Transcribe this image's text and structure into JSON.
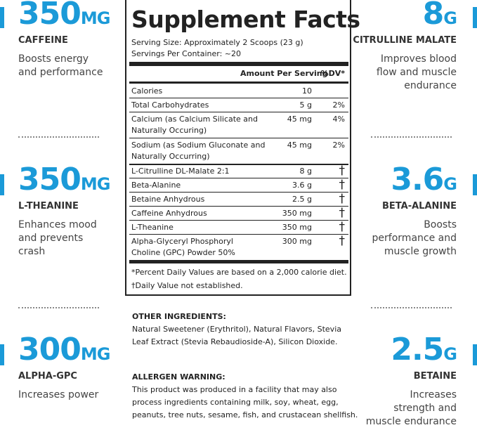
{
  "left_callouts": [
    {
      "value": "350",
      "unit": "MG",
      "name": "CAFFEINE",
      "description": [
        "Boosts energy",
        "and performance"
      ]
    },
    {
      "value": "350",
      "unit": "MG",
      "name": "L-THEANINE",
      "description": [
        "Enhances mood",
        "and prevents",
        "crash"
      ]
    },
    {
      "value": "300",
      "unit": "MG",
      "name": "ALPHA-GPC",
      "description": [
        "Increases power"
      ]
    }
  ],
  "right_callouts": [
    {
      "value": "8",
      "unit": "G",
      "name": "CITRULLINE MALATE",
      "description": [
        "Improves blood",
        "flow and muscle",
        "endurance"
      ]
    },
    {
      "value": "3.6",
      "unit": "G",
      "name": "BETA-ALANINE",
      "description": [
        "Boosts",
        "performance and",
        "muscle growth"
      ]
    },
    {
      "value": "2.5",
      "unit": "G",
      "name": "BETAINE",
      "description": [
        "Increases",
        "strength and",
        "muscle endurance"
      ]
    }
  ],
  "facts": {
    "title": "Supplement Facts",
    "serving_size": "Serving Size: Approximately 2 Scoops (23 g)",
    "servings_per_container": "Servings Per Container: ~20",
    "header": {
      "amount": "Amount Per Serving",
      "dv": "%DV*"
    },
    "rows": [
      {
        "name": [
          "Calories"
        ],
        "amount": "10",
        "dv": ""
      },
      {
        "name": [
          "Total Carbohydrates"
        ],
        "amount": "5 g",
        "dv": "2%"
      },
      {
        "name": [
          "Calcium (as Calcium Silicate and",
          "Naturally Occuring)"
        ],
        "amount": "45 mg",
        "dv": "4%"
      },
      {
        "name": [
          "Sodium (as Sodium Gluconate and",
          "Naturally Occurring)"
        ],
        "amount": "45 mg",
        "dv": "2%"
      },
      {
        "name": [
          "L-Citrulline DL-Malate 2:1"
        ],
        "amount": "8 g",
        "dv": "†"
      },
      {
        "name": [
          "Beta-Alanine"
        ],
        "amount": "3.6 g",
        "dv": "†"
      },
      {
        "name": [
          "Betaine Anhydrous"
        ],
        "amount": "2.5 g",
        "dv": "†"
      },
      {
        "name": [
          "Caffeine Anhydrous"
        ],
        "amount": "350 mg",
        "dv": "†"
      },
      {
        "name": [
          "L-Theanine"
        ],
        "amount": "350 mg",
        "dv": "†"
      },
      {
        "name": [
          "Alpha-Glyceryl Phosphoryl",
          "Choline (GPC) Powder 50%"
        ],
        "amount": "300 mg",
        "dv": "†"
      }
    ],
    "footnotes": [
      "*Percent Daily Values are based on a 2,000 calorie diet.",
      "†Daily Value not established."
    ]
  },
  "other_ingredients": {
    "heading": "OTHER INGREDIENTS:",
    "lines": [
      "Natural Sweetener (Erythritol), Natural Flavors, Stevia",
      "Leaf Extract (Stevia Rebaudioside-A), Silicon Dioxide."
    ]
  },
  "allergen_warning": {
    "heading": "ALLERGEN WARNING:",
    "lines": [
      "This product was produced in a facility that may also",
      "process ingredients containing milk, soy, wheat, egg,",
      "peanuts, tree nuts, sesame, fish, and crustacean shellfish."
    ]
  }
}
